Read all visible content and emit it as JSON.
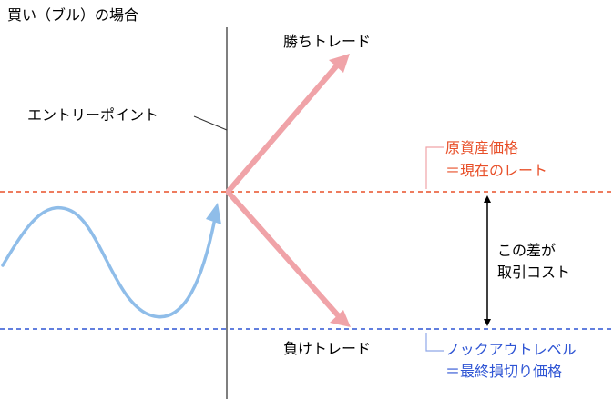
{
  "title": "買い（ブル）の場合",
  "labels": {
    "win_trade": "勝ちトレード",
    "lose_trade": "負けトレード",
    "entry_point": "エントリーポイント",
    "price_line1": "原資産価格",
    "price_line2": "＝現在のレート",
    "cost_line1": "この差が",
    "cost_line2": "取引コスト",
    "knockout_line1": "ノックアウトレベル",
    "knockout_line2": "＝最終損切り価格"
  },
  "colors": {
    "text": "#000000",
    "vertical_line": "#555555",
    "price_line": "#e8502a",
    "knockout_line": "#2f55d4",
    "trade_arrows": "#f0a3a8",
    "price_wave": "#8fbde9",
    "cost_arrow": "#000000"
  }
}
